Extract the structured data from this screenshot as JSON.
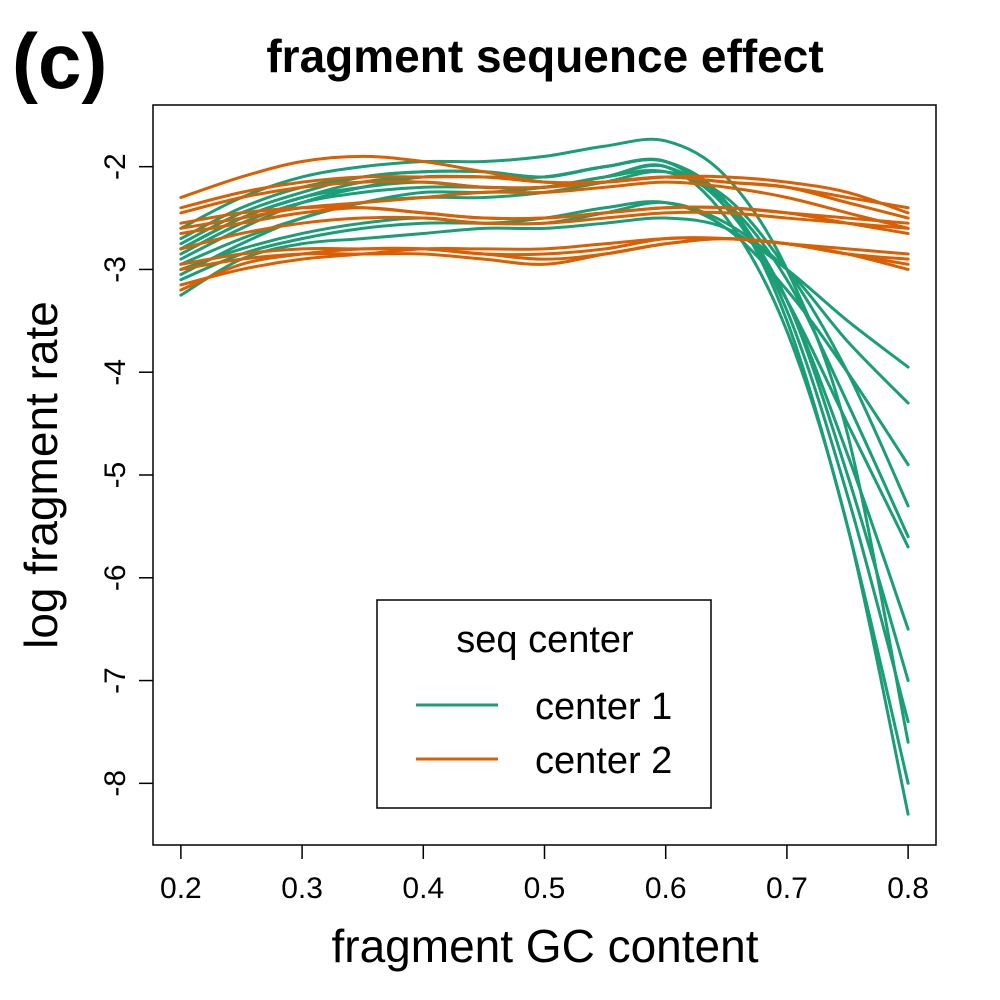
{
  "panel_label": "(c)",
  "colors": {
    "center1": "#1b9e77",
    "center2": "#d95f02"
  },
  "chart_data": {
    "type": "line",
    "title": "fragment sequence effect",
    "xlabel": "fragment GC content",
    "ylabel": "log fragment rate",
    "xlim": [
      0.177,
      0.823
    ],
    "ylim": [
      -8.6,
      -1.4
    ],
    "xticks": [
      0.2,
      0.3,
      0.4,
      0.5,
      0.6,
      0.7,
      0.8
    ],
    "xtick_labels": [
      "0.2",
      "0.3",
      "0.4",
      "0.5",
      "0.6",
      "0.7",
      "0.8"
    ],
    "yticks": [
      -2,
      -3,
      -4,
      -5,
      -6,
      -7,
      -8
    ],
    "ytick_labels": [
      "-2",
      "-3",
      "-4",
      "-5",
      "-6",
      "-7",
      "-8"
    ],
    "grid": false,
    "legend": {
      "title": "seq center",
      "placement": "bottom-center",
      "entries": [
        {
          "label": "center 1",
          "color": "#1b9e77"
        },
        {
          "label": "center 2",
          "color": "#d95f02"
        }
      ]
    },
    "x": [
      0.2,
      0.25,
      0.3,
      0.35,
      0.4,
      0.45,
      0.5,
      0.55,
      0.6,
      0.65,
      0.7,
      0.75,
      0.8
    ],
    "series": [
      {
        "group": "center 1",
        "values": [
          -2.7,
          -2.4,
          -2.2,
          -2.1,
          -2.05,
          -2.05,
          -2.1,
          -2.0,
          -1.95,
          -2.4,
          -3.3,
          -5.0,
          -7.0
        ]
      },
      {
        "group": "center 1",
        "values": [
          -2.8,
          -2.5,
          -2.3,
          -2.2,
          -2.15,
          -2.2,
          -2.2,
          -2.1,
          -2.0,
          -2.5,
          -3.6,
          -5.5,
          -8.3
        ]
      },
      {
        "group": "center 1",
        "values": [
          -3.0,
          -2.8,
          -2.65,
          -2.55,
          -2.5,
          -2.55,
          -2.5,
          -2.4,
          -2.35,
          -2.6,
          -3.2,
          -4.0,
          -4.9
        ]
      },
      {
        "group": "center 1",
        "values": [
          -3.25,
          -2.9,
          -2.75,
          -2.7,
          -2.65,
          -2.6,
          -2.6,
          -2.55,
          -2.5,
          -2.6,
          -3.0,
          -3.5,
          -3.95
        ]
      },
      {
        "group": "center 1",
        "values": [
          -2.9,
          -2.6,
          -2.35,
          -2.2,
          -2.1,
          -2.1,
          -2.1,
          -2.0,
          -1.95,
          -2.35,
          -3.3,
          -4.8,
          -6.5
        ]
      },
      {
        "group": "center 1",
        "values": [
          -2.6,
          -2.3,
          -2.1,
          -2.0,
          -1.95,
          -1.95,
          -1.9,
          -1.8,
          -1.75,
          -2.1,
          -3.0,
          -4.6,
          -7.6
        ]
      },
      {
        "group": "center 1",
        "values": [
          -3.05,
          -2.75,
          -2.5,
          -2.35,
          -2.25,
          -2.25,
          -2.2,
          -2.1,
          -2.05,
          -2.35,
          -3.1,
          -4.3,
          -5.6
        ]
      },
      {
        "group": "center 1",
        "values": [
          -2.75,
          -2.45,
          -2.25,
          -2.1,
          -2.05,
          -2.05,
          -2.1,
          -2.0,
          -1.95,
          -2.35,
          -3.5,
          -5.5,
          -8.0
        ]
      },
      {
        "group": "center 1",
        "values": [
          -2.95,
          -2.7,
          -2.5,
          -2.35,
          -2.3,
          -2.3,
          -2.25,
          -2.15,
          -2.05,
          -2.3,
          -3.0,
          -4.0,
          -5.3
        ]
      },
      {
        "group": "center 1",
        "values": [
          -2.85,
          -2.55,
          -2.35,
          -2.25,
          -2.2,
          -2.2,
          -2.2,
          -2.1,
          -2.0,
          -2.4,
          -3.3,
          -4.5,
          -5.7
        ]
      },
      {
        "group": "center 1",
        "values": [
          -3.1,
          -2.85,
          -2.7,
          -2.6,
          -2.55,
          -2.55,
          -2.55,
          -2.45,
          -2.35,
          -2.55,
          -3.0,
          -3.7,
          -4.3
        ]
      },
      {
        "group": "center 1",
        "values": [
          -2.8,
          -2.5,
          -2.3,
          -2.15,
          -2.1,
          -2.1,
          -2.1,
          -2.0,
          -1.95,
          -2.35,
          -3.4,
          -5.2,
          -7.4
        ]
      },
      {
        "group": "center 2",
        "values": [
          -2.3,
          -2.1,
          -1.95,
          -1.9,
          -1.95,
          -2.05,
          -2.15,
          -2.15,
          -2.1,
          -2.15,
          -2.2,
          -2.3,
          -2.4
        ]
      },
      {
        "group": "center 2",
        "values": [
          -2.45,
          -2.3,
          -2.2,
          -2.15,
          -2.15,
          -2.2,
          -2.2,
          -2.15,
          -2.1,
          -2.15,
          -2.2,
          -2.35,
          -2.5
        ]
      },
      {
        "group": "center 2",
        "values": [
          -2.6,
          -2.5,
          -2.4,
          -2.35,
          -2.3,
          -2.25,
          -2.25,
          -2.2,
          -2.15,
          -2.2,
          -2.3,
          -2.45,
          -2.6
        ]
      },
      {
        "group": "center 2",
        "values": [
          -2.65,
          -2.55,
          -2.45,
          -2.4,
          -2.45,
          -2.5,
          -2.5,
          -2.45,
          -2.4,
          -2.4,
          -2.45,
          -2.55,
          -2.65
        ]
      },
      {
        "group": "center 2",
        "values": [
          -2.8,
          -2.65,
          -2.55,
          -2.5,
          -2.5,
          -2.55,
          -2.55,
          -2.5,
          -2.45,
          -2.45,
          -2.5,
          -2.55,
          -2.6
        ]
      },
      {
        "group": "center 2",
        "values": [
          -3.0,
          -2.9,
          -2.85,
          -2.85,
          -2.85,
          -2.9,
          -2.95,
          -2.85,
          -2.75,
          -2.7,
          -2.75,
          -2.85,
          -3.0
        ]
      },
      {
        "group": "center 2",
        "values": [
          -3.2,
          -2.95,
          -2.85,
          -2.8,
          -2.8,
          -2.85,
          -2.85,
          -2.8,
          -2.7,
          -2.7,
          -2.75,
          -2.85,
          -2.9
        ]
      },
      {
        "group": "center 2",
        "values": [
          -2.95,
          -2.85,
          -2.8,
          -2.8,
          -2.8,
          -2.85,
          -2.9,
          -2.85,
          -2.75,
          -2.7,
          -2.75,
          -2.8,
          -2.85
        ]
      },
      {
        "group": "center 2",
        "values": [
          -3.15,
          -3.0,
          -2.9,
          -2.85,
          -2.8,
          -2.8,
          -2.8,
          -2.75,
          -2.7,
          -2.7,
          -2.75,
          -2.85,
          -2.95
        ]
      },
      {
        "group": "center 2",
        "values": [
          -2.55,
          -2.45,
          -2.4,
          -2.4,
          -2.45,
          -2.5,
          -2.5,
          -2.45,
          -2.4,
          -2.4,
          -2.45,
          -2.5,
          -2.55
        ]
      },
      {
        "group": "center 2",
        "values": [
          -2.4,
          -2.25,
          -2.15,
          -2.1,
          -2.1,
          -2.1,
          -2.15,
          -2.15,
          -2.1,
          -2.1,
          -2.15,
          -2.25,
          -2.45
        ]
      }
    ]
  }
}
